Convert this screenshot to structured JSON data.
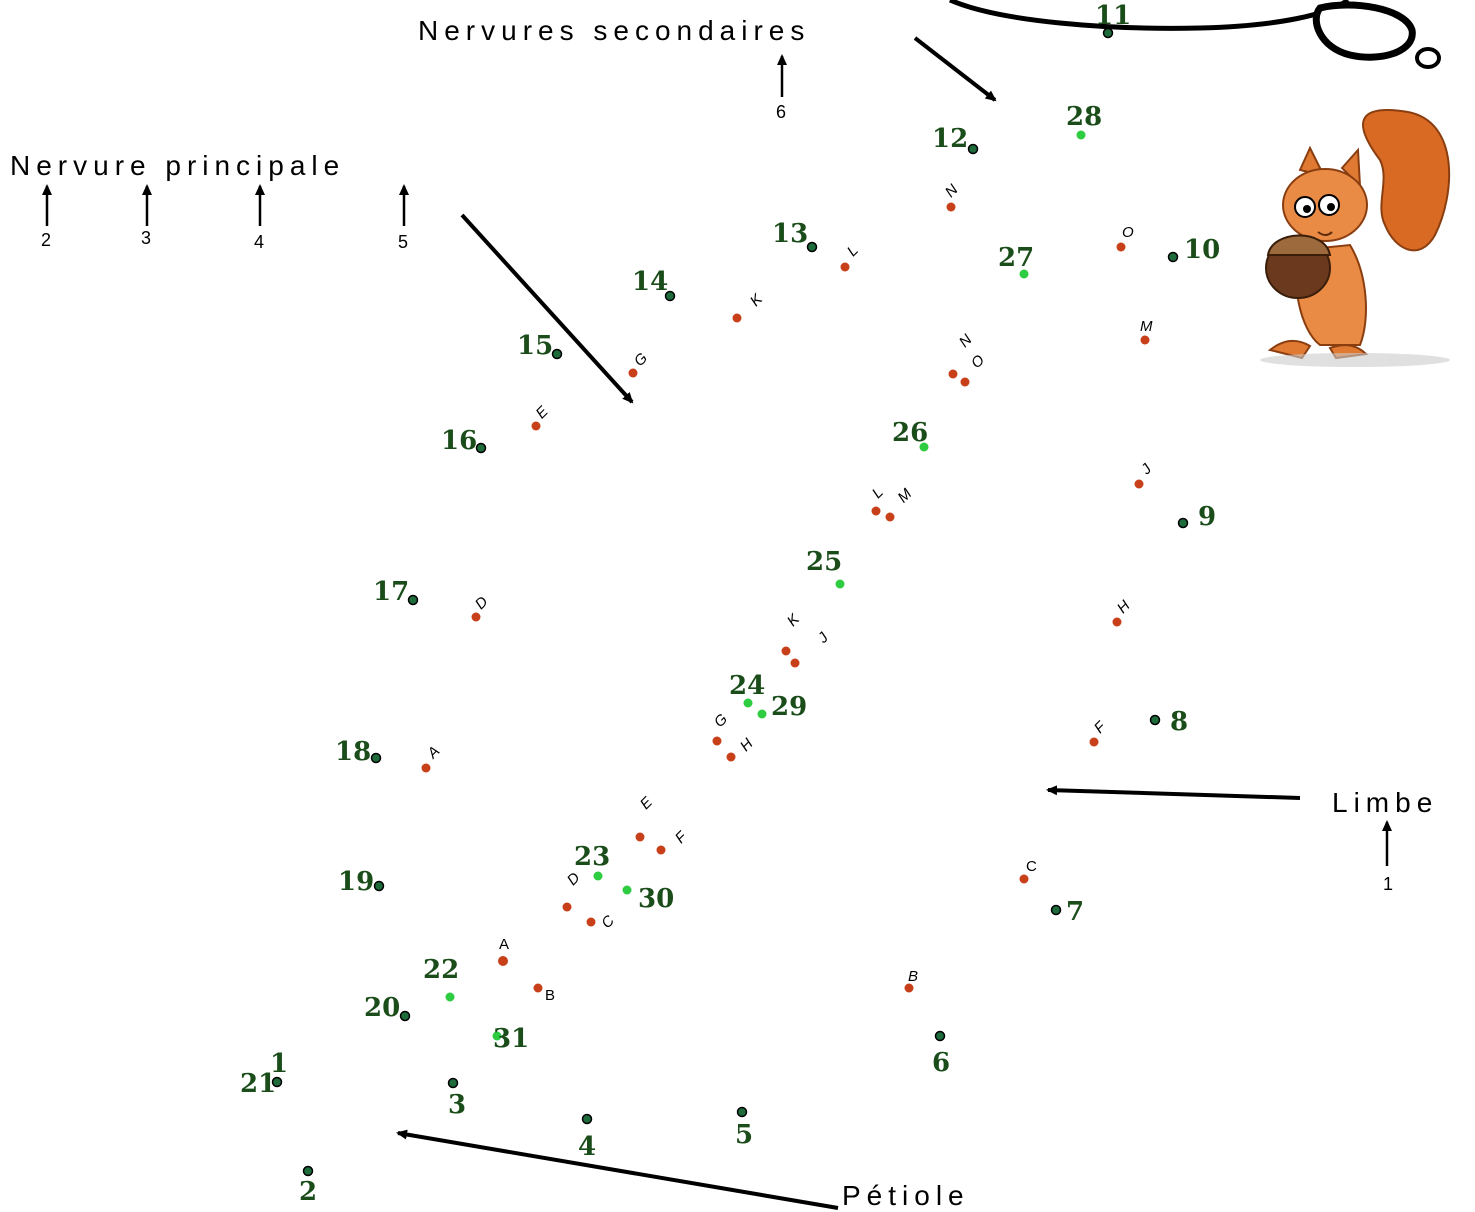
{
  "labels": {
    "nervures_secondaires": "Nervures secondaires",
    "nervure_principale": "Nervure principale",
    "limbe": "Limbe",
    "petiole": "Pétiole"
  },
  "indices": {
    "ns": "6",
    "np": [
      "2",
      "3",
      "4",
      "5"
    ],
    "limbe": "1"
  },
  "colors": {
    "dark_dot": "#1e6b3c",
    "light_dot": "#2ecc40",
    "red_dot": "#c8401a",
    "number_text": "#1a4d1a"
  },
  "outline_points": [
    "1",
    "2",
    "3",
    "4",
    "5",
    "6",
    "7",
    "8",
    "9",
    "10",
    "11",
    "12",
    "13",
    "14",
    "15",
    "16",
    "17",
    "18",
    "19",
    "20",
    "21"
  ],
  "midrib_points": [
    "22",
    "23",
    "24",
    "25",
    "26",
    "27",
    "28",
    "29",
    "30",
    "31"
  ],
  "left_vein_letters": [
    "A",
    "B",
    "C",
    "D",
    "E",
    "F",
    "G",
    "H",
    "J",
    "K",
    "L",
    "M",
    "N",
    "O"
  ],
  "right_vein_letters": [
    "A",
    "B",
    "C",
    "D",
    "E",
    "F",
    "G",
    "H",
    "J",
    "K",
    "L",
    "M",
    "N",
    "O"
  ]
}
